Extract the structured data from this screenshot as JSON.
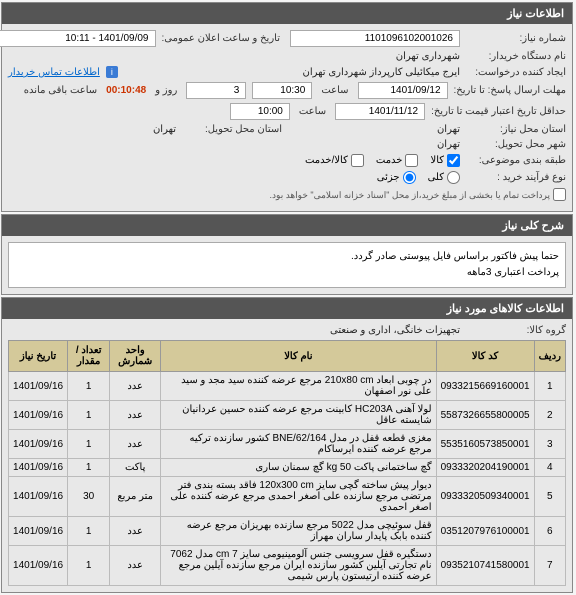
{
  "panel1": {
    "title": "اطلاعات نیاز",
    "fields": {
      "need_no_label": "شماره نیاز:",
      "need_no": "1101096102001026",
      "announce_label": "تاریخ و ساعت اعلان عمومی:",
      "announce": "1401/09/09 - 10:11",
      "buyer_label": "نام دستگاه خریدار:",
      "buyer": "شهرداری تهران",
      "requester_label": "ایجاد کننده درخواست:",
      "requester": "ایرج میکائیلی کارپرداز شهرداری تهران",
      "contact_link": "اطلاعات تماس خریدار",
      "deadline_label": "مهلت ارسال پاسخ: تا تاریخ:",
      "deadline_date": "1401/09/12",
      "time_label": "ساعت",
      "deadline_time": "10:30",
      "day_label": "روز و",
      "days_remaining": "3",
      "countdown": "00:10:48",
      "countdown_suffix": "ساعت باقی مانده",
      "validity_label": "حداقل تاریخ اعتبار قیمت تا تاریخ:",
      "validity_date": "1401/11/12",
      "validity_time": "10:00",
      "req_province_label": "استان محل نیاز:",
      "req_province": "تهران",
      "del_province_label": "استان محل تحویل:",
      "del_province": "تهران",
      "del_city_label": "شهر محل تحویل:",
      "del_city": "تهران",
      "subject_label": "طبقه بندی موضوعی:",
      "cb_goods": "کالا",
      "cb_service": "خدمت",
      "cb_goods_service": "کالا/خدمت",
      "purchase_type_label": "نوع فرآیند خرید :",
      "rb_full": "کلی",
      "rb_partial": "جزئی",
      "purchase_note": "پرداخت تمام یا بخشی از مبلغ خرید،از محل \"اسناد خزانه اسلامی\" خواهد بود."
    }
  },
  "panel2": {
    "title": "شرح کلی نیاز",
    "desc_line1": "حتما پیش فاکتور براساس فایل پیوستی صادر گردد.",
    "desc_line2": "پرداخت اعتباری 3ماهه"
  },
  "panel3": {
    "title": "اطلاعات کالاهای مورد نیاز",
    "group_label": "گروه کالا:",
    "group_value": "تجهیزات خانگی، اداری و صنعتی",
    "columns": {
      "row": "ردیف",
      "code": "کد کالا",
      "name": "نام کالا",
      "unit": "واحد شمارش",
      "qty": "تعداد / مقدار",
      "date": "تاریخ نیاز"
    },
    "rows": [
      {
        "n": "1",
        "code": "0933215669160001",
        "name": "در چوبی ابعاد 210x80 cm مرجع عرضه کننده سید مجد و سید علی نور اصفهان",
        "unit": "عدد",
        "qty": "1",
        "date": "1401/09/16"
      },
      {
        "n": "2",
        "code": "5587326655800005",
        "name": "لولا آهنی HC203A کابینت مرجع عرضه کننده حسین عردانیان شایسته عاقل",
        "unit": "عدد",
        "qty": "1",
        "date": "1401/09/16"
      },
      {
        "n": "3",
        "code": "5535160573850001",
        "name": "مغزی قطعه قفل در مدل BNE/62/164 کشور سازنده ترکیه مرجع عرضه کننده ایرساکام",
        "unit": "عدد",
        "qty": "1",
        "date": "1401/09/16"
      },
      {
        "n": "4",
        "code": "0933320204190001",
        "name": "گچ ساختمانی پاکت 50 kg گچ سمنان ساری",
        "unit": "پاکت",
        "qty": "1",
        "date": "1401/09/16"
      },
      {
        "n": "5",
        "code": "0933320509340001",
        "name": "دیوار پیش ساخته گچی سایز 120x300 cm فاقد بسته بندی فتر مرتضی مرجع سازنده علی اصغر احمدی مرجع عرضه کننده علی اصغر احمدی",
        "unit": "متر مربع",
        "qty": "30",
        "date": "1401/09/16"
      },
      {
        "n": "6",
        "code": "0351207976100001",
        "name": "قفل سوئیچی مدل 5022 مرجع سازنده بهریزان مرجع عرضه کننده بابک پایدار ساران مهراز",
        "unit": "عدد",
        "qty": "1",
        "date": "1401/09/16"
      },
      {
        "n": "7",
        "code": "0935210741580001",
        "name": "دستگیره قفل سرویسی جنس آلومینیومی سایز 7 cm مدل 7062 نام تجارتی آیلین کشور سازنده ایران مرجع سازنده آیلین مرجع عرضه کننده ارتیستون پارس شیمی",
        "unit": "عدد",
        "qty": "1",
        "date": "1401/09/16"
      }
    ]
  }
}
